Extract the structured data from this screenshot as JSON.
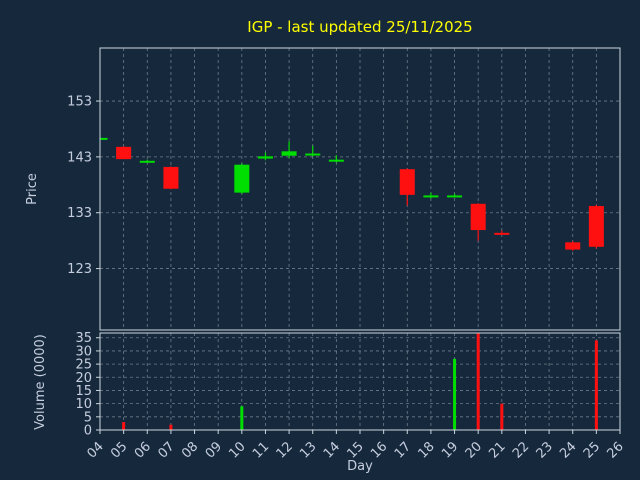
{
  "colors": {
    "background": "#16293c",
    "title": "#ffff00",
    "up": "#00dd00",
    "down": "#ff1010",
    "spine": "#cdd5dd",
    "grid": "#8a97a5",
    "tick_label": "#c6cede",
    "axis_label": "#c6cede"
  },
  "chart_data": {
    "type": "candlestick",
    "title": "IGP - last updated 25/11/2025",
    "xlabel": "Day",
    "grid": true,
    "legend": "none",
    "x_range": [
      4,
      26
    ],
    "x_tick_labels": [
      "04",
      "05",
      "06",
      "07",
      "08",
      "09",
      "10",
      "11",
      "12",
      "13",
      "14",
      "15",
      "16",
      "17",
      "18",
      "19",
      "20",
      "21",
      "22",
      "23",
      "24",
      "25",
      "26"
    ],
    "price_panel": {
      "ylabel": "Price",
      "ylim": [
        112,
        162.5
      ],
      "yticks": [
        123,
        133,
        143,
        153
      ]
    },
    "volume_panel": {
      "ylabel": "Volume (0000)",
      "ylim": [
        0,
        36.8
      ],
      "yticks": [
        0,
        5,
        10,
        15,
        20,
        25,
        30,
        35
      ]
    },
    "candles": [
      {
        "day": 4,
        "open": 146.4,
        "high": 146.4,
        "low": 146.4,
        "close": 146.4,
        "volume": 0
      },
      {
        "day": 5,
        "open": 144.8,
        "high": 144.9,
        "low": 142.6,
        "close": 142.6,
        "volume": 3
      },
      {
        "day": 6,
        "open": 142.2,
        "high": 142.5,
        "low": 142.0,
        "close": 142.3,
        "volume": 0
      },
      {
        "day": 7,
        "open": 141.2,
        "high": 141.3,
        "low": 137.2,
        "close": 137.3,
        "volume": 2
      },
      {
        "day": 10,
        "open": 136.6,
        "high": 141.8,
        "low": 136.4,
        "close": 141.6,
        "volume": 9
      },
      {
        "day": 11,
        "open": 142.7,
        "high": 143.8,
        "low": 142.4,
        "close": 143.1,
        "volume": 0
      },
      {
        "day": 12,
        "open": 143.2,
        "high": 145.8,
        "low": 142.8,
        "close": 144.0,
        "volume": 0
      },
      {
        "day": 13,
        "open": 143.3,
        "high": 145.0,
        "low": 143.1,
        "close": 143.6,
        "volume": 0
      },
      {
        "day": 14,
        "open": 142.3,
        "high": 143.3,
        "low": 142.0,
        "close": 142.5,
        "volume": 0
      },
      {
        "day": 17,
        "open": 140.8,
        "high": 140.9,
        "low": 134.3,
        "close": 136.2,
        "volume": 0
      },
      {
        "day": 18,
        "open": 135.9,
        "high": 136.6,
        "low": 135.6,
        "close": 136.1,
        "volume": 0
      },
      {
        "day": 19,
        "open": 135.9,
        "high": 136.4,
        "low": 135.7,
        "close": 136.1,
        "volume": 27
      },
      {
        "day": 20,
        "open": 134.6,
        "high": 134.7,
        "low": 128.0,
        "close": 129.9,
        "volume": 37
      },
      {
        "day": 21,
        "open": 129.4,
        "high": 129.8,
        "low": 129.0,
        "close": 129.1,
        "volume": 10
      },
      {
        "day": 24,
        "open": 127.7,
        "high": 127.9,
        "low": 126.2,
        "close": 126.4,
        "volume": 0
      },
      {
        "day": 25,
        "open": 134.2,
        "high": 134.4,
        "low": 126.6,
        "close": 126.9,
        "volume": 34
      }
    ]
  }
}
